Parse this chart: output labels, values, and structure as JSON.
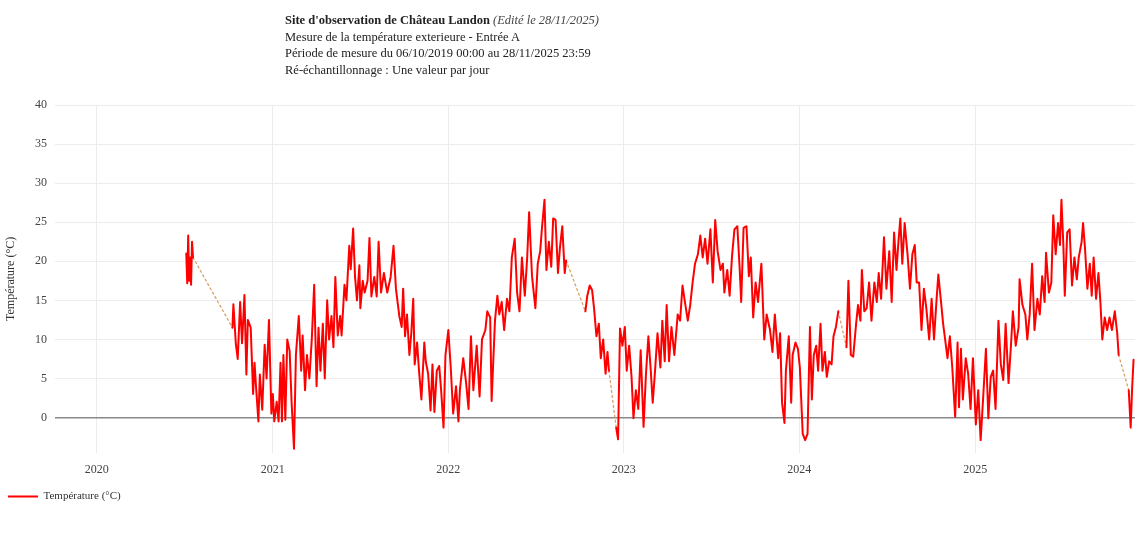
{
  "chart_data": {
    "type": "line",
    "title": "Site d'observation de Château Landon",
    "subtitle": "(Edité le 28/11/2025)",
    "annotations": [
      "Mesure de la température exterieure - Entrée A",
      "Période de mesure du 06/10/2019 00:00 au 28/11/2025 23:59",
      "Ré-échantillonnage : Une valeur par jour"
    ],
    "ylabel": "Température (°C)",
    "xlim": [
      "2019-10-06",
      "2025-11-28T23:59"
    ],
    "xticks": [
      "2020",
      "2021",
      "2022",
      "2023",
      "2024",
      "2025"
    ],
    "ylim": [
      -4.5,
      40
    ],
    "yticks": [
      0,
      5,
      10,
      15,
      20,
      25,
      30,
      35,
      40
    ],
    "grid": true,
    "legend": "bottom left",
    "marker": "none",
    "series": [
      {
        "name": "Température (°C)",
        "color": "#ff0000",
        "line_style": "solid",
        "x": [
          "2020-07-05",
          "2020-07-07",
          "2020-07-09",
          "2020-07-11",
          "2020-07-13",
          "2020-07-15",
          "2020-07-17",
          "2020-07-19",
          "2020-08-20",
          "2020-10-09",
          "2020-10-11",
          "2020-10-16",
          "2020-10-20",
          "2020-10-25",
          "2020-10-29",
          "2020-11-03",
          "2020-11-07",
          "2020-11-10",
          "2020-11-16",
          "2020-11-21",
          "2020-11-24",
          "2020-11-27",
          "2020-12-02",
          "2020-12-05",
          "2020-12-10",
          "2020-12-15",
          "2020-12-19",
          "2020-12-24",
          "2020-12-29",
          "2021-01-01",
          "2021-01-04",
          "2021-01-09",
          "2021-01-13",
          "2021-01-17",
          "2021-01-20",
          "2021-01-23",
          "2021-01-27",
          "2021-01-31",
          "2021-02-05",
          "2021-02-09",
          "2021-02-14",
          "2021-02-18",
          "2021-02-24",
          "2021-03-01",
          "2021-03-04",
          "2021-03-09",
          "2021-03-13",
          "2021-03-18",
          "2021-03-23",
          "2021-03-28",
          "2021-04-02",
          "2021-04-06",
          "2021-04-10",
          "2021-04-15",
          "2021-04-19",
          "2021-04-24",
          "2021-04-28",
          "2021-05-03",
          "2021-05-07",
          "2021-05-11",
          "2021-05-16",
          "2021-05-21",
          "2021-05-24",
          "2021-05-30",
          "2021-06-03",
          "2021-06-09",
          "2021-06-12",
          "2021-06-17",
          "2021-06-21",
          "2021-06-25",
          "2021-06-30",
          "2021-07-02",
          "2021-07-07",
          "2021-07-11",
          "2021-07-17",
          "2021-07-21",
          "2021-07-25",
          "2021-07-31",
          "2021-08-05",
          "2021-08-09",
          "2021-08-14",
          "2021-08-20",
          "2021-08-27",
          "2021-09-03",
          "2021-09-09",
          "2021-09-14",
          "2021-09-21",
          "2021-09-26",
          "2021-09-29",
          "2021-10-03",
          "2021-10-07",
          "2021-10-12",
          "2021-10-16",
          "2021-10-20",
          "2021-10-23",
          "2021-10-28",
          "2021-11-01",
          "2021-11-06",
          "2021-11-12",
          "2021-11-15",
          "2021-11-20",
          "2021-11-25",
          "2021-11-29",
          "2021-12-03",
          "2021-12-08",
          "2021-12-13",
          "2021-12-17",
          "2021-12-22",
          "2021-12-26",
          "2022-01-01",
          "2022-01-06",
          "2022-01-11",
          "2022-01-17",
          "2022-01-22",
          "2022-01-25",
          "2022-02-01",
          "2022-02-07",
          "2022-02-12",
          "2022-02-17",
          "2022-02-22",
          "2022-03-01",
          "2022-03-07",
          "2022-03-12",
          "2022-03-19",
          "2022-03-23",
          "2022-03-29",
          "2022-04-01",
          "2022-04-08",
          "2022-04-13",
          "2022-04-17",
          "2022-04-22",
          "2022-04-27",
          "2022-05-03",
          "2022-05-08",
          "2022-05-13",
          "2022-05-19",
          "2022-05-24",
          "2022-05-29",
          "2022-06-03",
          "2022-06-09",
          "2022-06-14",
          "2022-06-18",
          "2022-06-24",
          "2022-07-01",
          "2022-07-06",
          "2022-07-11",
          "2022-07-15",
          "2022-07-20",
          "2022-07-24",
          "2022-07-29",
          "2022-08-03",
          "2022-08-07",
          "2022-08-12",
          "2022-08-17",
          "2022-08-21",
          "2022-08-26",
          "2022-08-31",
          "2022-09-03",
          "2022-09-20",
          "2022-10-13",
          "2022-10-17",
          "2022-10-22",
          "2022-10-27",
          "2022-10-31",
          "2022-11-05",
          "2022-11-10",
          "2022-11-14",
          "2022-11-19",
          "2022-11-24",
          "2022-11-28",
          "2022-12-01",
          "2022-12-08",
          "2022-12-16",
          "2022-12-20",
          "2022-12-24",
          "2022-12-29",
          "2023-01-03",
          "2023-01-07",
          "2023-01-12",
          "2023-01-17",
          "2023-01-21",
          "2023-01-26",
          "2023-01-31",
          "2023-02-05",
          "2023-02-11",
          "2023-02-16",
          "2023-02-21",
          "2023-02-26",
          "2023-03-02",
          "2023-03-06",
          "2023-03-12",
          "2023-03-18",
          "2023-03-22",
          "2023-03-27",
          "2023-03-31",
          "2023-04-05",
          "2023-04-10",
          "2023-04-16",
          "2023-04-23",
          "2023-04-28",
          "2023-05-03",
          "2023-05-08",
          "2023-05-14",
          "2023-05-19",
          "2023-05-24",
          "2023-05-29",
          "2023-06-04",
          "2023-06-09",
          "2023-06-14",
          "2023-06-19",
          "2023-06-24",
          "2023-06-30",
          "2023-07-05",
          "2023-07-10",
          "2023-07-15",
          "2023-07-21",
          "2023-07-26",
          "2023-07-29",
          "2023-08-04",
          "2023-08-09",
          "2023-08-14",
          "2023-08-19",
          "2023-08-25",
          "2023-08-30",
          "2023-09-02",
          "2023-09-07",
          "2023-09-13",
          "2023-09-18",
          "2023-09-22",
          "2023-09-27",
          "2023-10-02",
          "2023-10-07",
          "2023-10-14",
          "2023-10-20",
          "2023-10-25",
          "2023-11-01",
          "2023-11-06",
          "2023-11-11",
          "2023-11-18",
          "2023-11-22",
          "2023-11-26",
          "2023-12-01",
          "2023-12-04",
          "2023-12-10",
          "2023-12-15",
          "2023-12-18",
          "2023-12-24",
          "2023-12-29",
          "2024-01-02",
          "2024-01-08",
          "2024-01-13",
          "2024-01-18",
          "2024-01-23",
          "2024-01-27",
          "2024-01-31",
          "2024-02-05",
          "2024-02-09",
          "2024-02-14",
          "2024-02-18",
          "2024-02-23",
          "2024-02-27",
          "2024-03-03",
          "2024-03-08",
          "2024-03-12",
          "2024-03-17",
          "2024-03-22",
          "2024-03-30",
          "2024-04-08",
          "2024-04-12",
          "2024-04-17",
          "2024-04-22",
          "2024-04-28",
          "2024-05-02",
          "2024-05-07",
          "2024-05-10",
          "2024-05-15",
          "2024-05-20",
          "2024-05-25",
          "2024-05-30",
          "2024-06-05",
          "2024-06-10",
          "2024-06-14",
          "2024-06-19",
          "2024-06-25",
          "2024-06-30",
          "2024-07-06",
          "2024-07-11",
          "2024-07-16",
          "2024-07-21",
          "2024-07-25",
          "2024-07-29",
          "2024-08-02",
          "2024-08-07",
          "2024-08-13",
          "2024-08-18",
          "2024-08-23",
          "2024-08-28",
          "2024-09-01",
          "2024-09-06",
          "2024-09-11",
          "2024-09-16",
          "2024-09-21",
          "2024-09-27",
          "2024-10-02",
          "2024-10-07",
          "2024-10-12",
          "2024-10-16",
          "2024-10-21",
          "2024-10-26",
          "2024-10-31",
          "2024-11-04",
          "2024-11-09",
          "2024-11-14",
          "2024-11-20",
          "2024-11-25",
          "2024-11-28",
          "2024-12-02",
          "2024-12-06",
          "2024-12-12",
          "2024-12-17",
          "2024-12-22",
          "2024-12-27",
          "2025-01-02",
          "2025-01-07",
          "2025-01-12",
          "2025-01-17",
          "2025-01-23",
          "2025-01-28",
          "2025-02-02",
          "2025-02-07",
          "2025-02-12",
          "2025-02-18",
          "2025-02-23",
          "2025-02-28",
          "2025-03-05",
          "2025-03-11",
          "2025-03-16",
          "2025-03-20",
          "2025-03-26",
          "2025-04-01",
          "2025-04-03",
          "2025-04-09",
          "2025-04-15",
          "2025-04-19",
          "2025-04-24",
          "2025-04-29",
          "2025-05-04",
          "2025-05-10",
          "2025-05-15",
          "2025-05-20",
          "2025-05-25",
          "2025-05-28",
          "2025-06-03",
          "2025-06-08",
          "2025-06-12",
          "2025-06-17",
          "2025-06-22",
          "2025-06-26",
          "2025-06-29",
          "2025-07-03",
          "2025-07-06",
          "2025-07-11",
          "2025-07-16",
          "2025-07-21",
          "2025-07-26",
          "2025-07-31",
          "2025-08-04",
          "2025-08-10",
          "2025-08-13",
          "2025-08-17",
          "2025-08-22",
          "2025-08-27",
          "2025-08-31",
          "2025-09-04",
          "2025-09-09",
          "2025-09-14",
          "2025-09-18",
          "2025-09-22",
          "2025-09-27",
          "2025-10-02",
          "2025-10-07",
          "2025-10-12",
          "2025-10-18",
          "2025-10-23",
          "2025-10-26",
          "2025-11-05",
          "2025-11-16",
          "2025-11-20",
          "2025-11-23",
          "2025-11-26"
        ],
        "values": [
          21,
          17.2,
          23.3,
          17.5,
          20.5,
          17,
          22.5,
          20.5,
          null,
          11.5,
          14.5,
          9.5,
          7.5,
          14.8,
          9.5,
          15.7,
          5.5,
          12.5,
          11.5,
          3,
          7,
          4,
          -0.5,
          5.5,
          1,
          9.3,
          5,
          12.5,
          0.5,
          3,
          -0.5,
          2,
          -0.5,
          7,
          -0.5,
          8,
          -0.3,
          10,
          8.5,
          2,
          -4,
          8,
          13,
          6,
          10.5,
          3.5,
          8,
          5,
          10,
          17,
          4,
          11.5,
          6,
          12,
          5,
          15,
          10,
          13,
          9,
          18,
          10.5,
          13,
          10.5,
          17,
          15,
          22,
          19,
          24.2,
          18,
          15,
          19.5,
          14,
          17.5,
          16,
          17.5,
          23,
          15.5,
          18,
          15.5,
          22.5,
          16,
          18.5,
          16,
          18,
          22,
          16.5,
          13,
          11.6,
          16.5,
          10.4,
          13.2,
          8,
          10.8,
          15.2,
          6.8,
          9.6,
          6,
          2.3,
          9.6,
          7.2,
          5.6,
          0.9,
          6.8,
          0.7,
          6,
          6.6,
          3.5,
          -1.3,
          8,
          11.2,
          6.4,
          0.5,
          4,
          -0.5,
          3.5,
          7.6,
          4.4,
          1.1,
          10.4,
          3.5,
          9.2,
          2.7,
          10,
          11.2,
          13.6,
          12.8,
          2.1,
          12.4,
          15.6,
          13.2,
          14.8,
          11.2,
          15.2,
          13.6,
          20.5,
          22.9,
          16,
          13.6,
          20.5,
          15.6,
          20.5,
          26.3,
          18.1,
          14,
          19.7,
          21.3,
          24.5,
          27.9,
          18.9,
          22.5,
          19.3,
          25.5,
          25.3,
          18.5,
          21.7,
          24.5,
          18.5,
          20.1,
          null,
          13.6,
          15.6,
          16.9,
          16.3,
          14,
          10.4,
          12,
          7.6,
          10,
          5.6,
          8.4,
          6,
          null,
          -1.3,
          -2.8,
          11.4,
          9.2,
          11.6,
          6,
          9.2,
          5.2,
          -0.1,
          3.5,
          1.1,
          8.6,
          -1.2,
          5.6,
          10.4,
          6,
          1.9,
          5.2,
          10.8,
          6.4,
          12.4,
          7.2,
          14.4,
          7.2,
          11.6,
          8,
          13.2,
          12.4,
          16.9,
          14.8,
          12.4,
          14.4,
          17.3,
          19.7,
          20.9,
          23.3,
          20.5,
          22.9,
          19.7,
          24.1,
          17.3,
          25.3,
          21.3,
          18.9,
          19.7,
          16,
          18.9,
          15.6,
          20.7,
          24.1,
          24.5,
          18.9,
          14.8,
          24.3,
          24.5,
          18.1,
          20.5,
          12.8,
          17.3,
          14.8,
          19.7,
          10,
          13.2,
          11.2,
          8.4,
          13.2,
          7.6,
          10.8,
          1.9,
          -0.7,
          6,
          10.4,
          1.9,
          8,
          9.6,
          8.8,
          6.4,
          -2.1,
          -2.9,
          -2.1,
          11.6,
          2.3,
          8,
          9.2,
          6,
          12,
          6,
          8.4,
          5.2,
          7.2,
          6.8,
          10.4,
          11.6,
          13.6,
          null,
          9,
          17.5,
          8,
          7.8,
          12,
          14.4,
          12.4,
          18.9,
          13.6,
          14,
          17.3,
          12.4,
          17.3,
          14.8,
          18.5,
          15.2,
          23.1,
          16.5,
          21.3,
          14.8,
          23.7,
          18.9,
          22.5,
          25.5,
          19.7,
          24.9,
          20.9,
          16.5,
          20.9,
          22.1,
          17.3,
          17.3,
          11.2,
          16.5,
          14,
          10,
          15.2,
          10,
          14.8,
          18.3,
          15.2,
          12,
          9.6,
          7.6,
          10.4,
          6.4,
          0.1,
          9.6,
          1.3,
          8.8,
          2.3,
          7.6,
          5.6,
          1.1,
          7.6,
          -0.9,
          3.5,
          -2.9,
          2.3,
          8.8,
          -0.1,
          5.2,
          6,
          1.1,
          12.4,
          6.8,
          4.8,
          12,
          4.4,
          9.2,
          13.6,
          9.2,
          11.6,
          17.7,
          14.4,
          13.2,
          10,
          13.2,
          19.7,
          11.2,
          15.2,
          13.2,
          18.1,
          14.8,
          21.1,
          16,
          17.3,
          25.9,
          20.9,
          24.9,
          22.1,
          27.9,
          22.1,
          15.6,
          23.7,
          24.1,
          16.9,
          20.5,
          17.7,
          20.5,
          22.5,
          24.9,
          21.7,
          16.5,
          19.7,
          15.6,
          20.5,
          15.2,
          18.5,
          14.8,
          10,
          12.8,
          11.2,
          12.8,
          11.2,
          13.6,
          10.8,
          8,
          null,
          3.5,
          -1.3,
          3.7,
          7.4
        ]
      },
      {
        "color": "#d9a066",
        "line_style": "dotted",
        "x": [
          "2020-07-19",
          "2020-10-09",
          "2021-06-01",
          "2022-09-03",
          "2022-10-13",
          "2022-11-15",
          "2022-12-01",
          "2022-12-16",
          "2023-06-01",
          "2024-03-22",
          "2024-04-08",
          "2025-06-01",
          "2025-10-26",
          "2025-11-16"
        ],
        "values": [
          20.5,
          11.5,
          null,
          20.1,
          13.6,
          null,
          6,
          -1.3,
          null,
          13.6,
          9,
          null,
          8,
          3.5
        ]
      }
    ]
  }
}
